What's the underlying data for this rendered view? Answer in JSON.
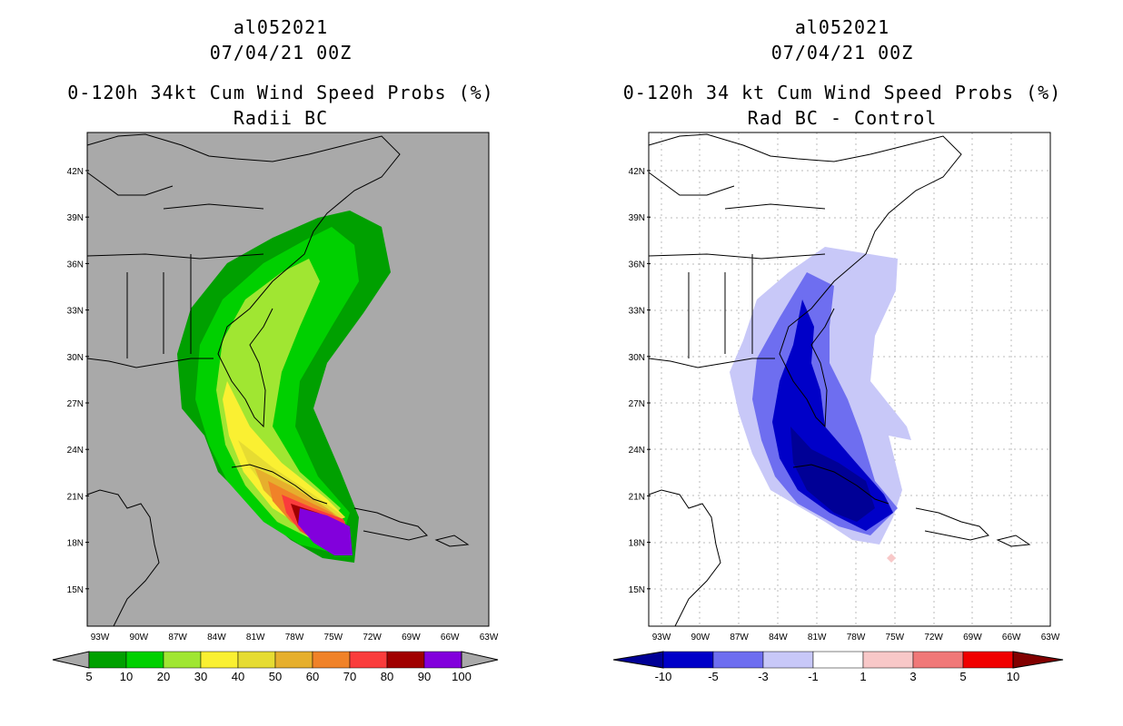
{
  "left": {
    "storm_id": "al052021",
    "date": "07/04/21 00Z",
    "title": "0-120h 34kt Cum Wind Speed Probs (%)",
    "subtitle": "Radii BC",
    "lat_labels": [
      "42N",
      "39N",
      "36N",
      "33N",
      "30N",
      "27N",
      "24N",
      "21N",
      "18N",
      "15N"
    ],
    "lon_labels": [
      "93W",
      "90W",
      "87W",
      "84W",
      "81W",
      "78W",
      "75W",
      "72W",
      "69W",
      "66W",
      "63W"
    ],
    "colorbar": {
      "colors": [
        "#00a000",
        "#00d000",
        "#a0e632",
        "#faf032",
        "#e6dc32",
        "#e6af2d",
        "#f08228",
        "#fa3c3c",
        "#a00000",
        "#8200dc"
      ],
      "labels": [
        "5",
        "10",
        "20",
        "30",
        "40",
        "50",
        "60",
        "70",
        "80",
        "90",
        "100"
      ]
    }
  },
  "right": {
    "storm_id": "al052021",
    "date": "07/04/21 00Z",
    "title": "0-120h 34 kt Cum Wind Speed Probs (%)",
    "subtitle": "Rad BC - Control",
    "lat_labels": [
      "42N",
      "39N",
      "36N",
      "33N",
      "30N",
      "27N",
      "24N",
      "21N",
      "18N",
      "15N"
    ],
    "lon_labels": [
      "93W",
      "90W",
      "87W",
      "84W",
      "81W",
      "78W",
      "75W",
      "72W",
      "69W",
      "66W",
      "63W"
    ],
    "colorbar": {
      "colors": [
        "#0000c8",
        "#6e6ef0",
        "#c8c8f8",
        "#ffffff",
        "#f8c8c8",
        "#f07878",
        "#f00000"
      ],
      "end_low": "#000096",
      "end_high": "#820000",
      "labels": [
        "-10",
        "-5",
        "-3",
        "-1",
        "1",
        "3",
        "5",
        "10"
      ]
    }
  }
}
